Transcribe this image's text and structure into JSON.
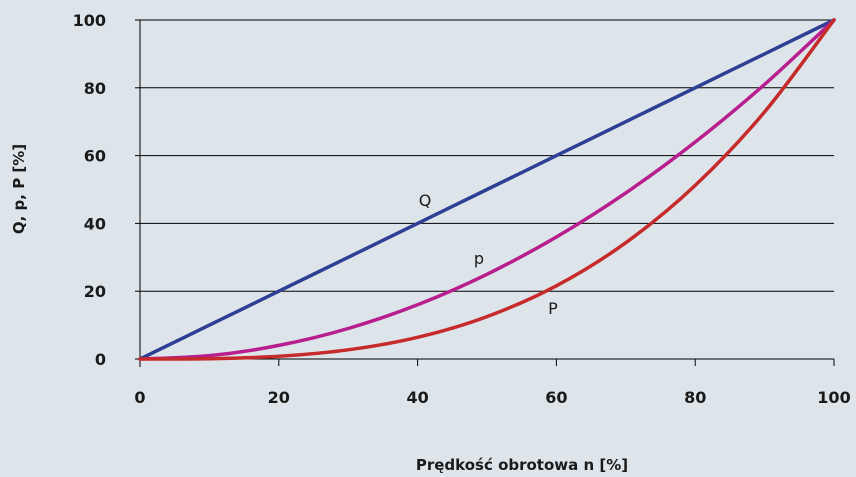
{
  "chart_data": {
    "type": "line",
    "xlabel": "Prędkość obrotowa n  [%]",
    "ylabel": "Q, p, P [%]",
    "xlim": [
      0,
      100
    ],
    "ylim": [
      0,
      100
    ],
    "x_ticks": [
      "0",
      "20",
      "40",
      "60",
      "80",
      "100"
    ],
    "y_ticks": [
      "0",
      "20",
      "40",
      "60",
      "80",
      "100"
    ],
    "grid": "horizontal",
    "background": "#dde5ea",
    "x": [
      0,
      10,
      20,
      30,
      40,
      50,
      60,
      70,
      80,
      90,
      100
    ],
    "series": [
      {
        "name": "Q",
        "color": "#2e3f94",
        "values": [
          0,
          10,
          20,
          30,
          40,
          50,
          60,
          70,
          80,
          90,
          100
        ]
      },
      {
        "name": "p",
        "color": "#b81e8e",
        "values": [
          0,
          1,
          4,
          9,
          16,
          25,
          36,
          49,
          64,
          81,
          100
        ]
      },
      {
        "name": "P",
        "color": "#c62a2a",
        "values": [
          0,
          0.1,
          0.8,
          2.7,
          6.4,
          12.5,
          21.6,
          34.3,
          51.2,
          72.9,
          100
        ]
      }
    ]
  }
}
